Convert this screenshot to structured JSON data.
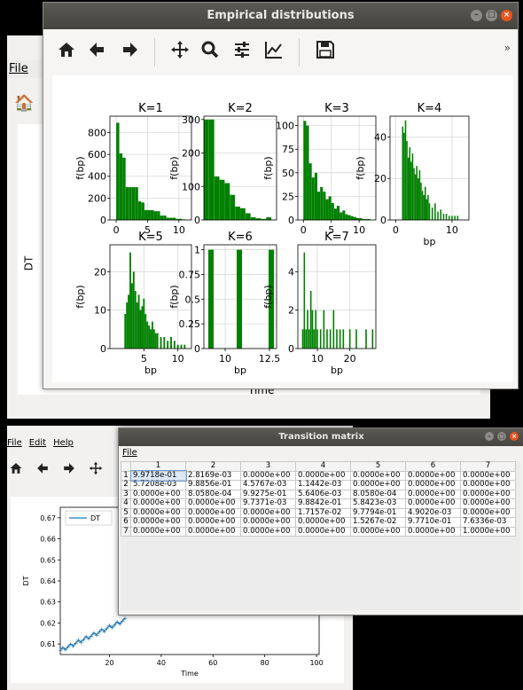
{
  "top_window": {
    "title": "Empirical distributions",
    "toolbar": [
      "home-icon",
      "back-icon",
      "forward-icon",
      "pan-icon",
      "zoom-icon",
      "configure-icon",
      "edit-axes-icon",
      "save-icon"
    ],
    "overflow": "»"
  },
  "bg_window": {
    "menu_file": "File",
    "ylabel": "DT",
    "xlabel": "Time"
  },
  "chart_data": [
    {
      "type": "bar",
      "title": "K=1",
      "ylabel": "f(bp)",
      "xlabel": "",
      "xlim": [
        -1,
        12
      ],
      "ylim": [
        0,
        950
      ],
      "yticks": [
        0,
        200,
        400,
        600,
        800
      ],
      "xticks": [
        0,
        5,
        10
      ],
      "x": [
        0.25,
        0.75,
        1.25,
        1.75,
        2.25,
        2.75,
        3.25,
        3.75,
        4.25,
        4.75,
        5.25,
        5.75,
        6.25,
        6.75,
        7.25,
        7.75,
        8.25,
        8.75,
        9.25,
        9.75,
        10.25,
        10.75
      ],
      "values": [
        890,
        610,
        570,
        300,
        300,
        300,
        300,
        170,
        160,
        90,
        90,
        90,
        80,
        80,
        40,
        40,
        20,
        20,
        20,
        10,
        10,
        5
      ]
    },
    {
      "type": "bar",
      "title": "K=2",
      "ylabel": "f(bp)",
      "xlabel": "",
      "xlim": [
        0,
        14
      ],
      "ylim": [
        0,
        310
      ],
      "yticks": [
        0,
        100,
        200,
        300
      ],
      "xticks": [],
      "x": [
        0.5,
        1.5,
        2.5,
        3.5,
        4.5,
        5.5,
        6.5,
        7.5,
        8.5,
        9.5,
        10.5,
        11.5,
        12.5
      ],
      "values": [
        300,
        300,
        130,
        120,
        110,
        75,
        40,
        35,
        20,
        8,
        5,
        3,
        8
      ]
    },
    {
      "type": "bar",
      "title": "K=3",
      "ylabel": "f(bp)",
      "xlabel": "",
      "xlim": [
        -1,
        13
      ],
      "ylim": [
        0,
        110
      ],
      "yticks": [
        0,
        25,
        50,
        75,
        100
      ],
      "xticks": [
        0,
        5,
        10
      ],
      "x": [
        0.25,
        0.75,
        1.25,
        1.75,
        2.25,
        2.75,
        3.25,
        3.75,
        4.25,
        4.75,
        5.25,
        5.75,
        6.25,
        6.75,
        7.25,
        7.75,
        8.25,
        8.75,
        9.25,
        9.75,
        10.25,
        10.75,
        11.25,
        11.75
      ],
      "values": [
        105,
        100,
        60,
        45,
        50,
        30,
        35,
        30,
        22,
        25,
        18,
        12,
        15,
        8,
        10,
        6,
        5,
        4,
        3,
        2,
        2,
        1,
        1,
        1
      ]
    },
    {
      "type": "bar",
      "title": "K=4",
      "ylabel": "f(bp)",
      "xlabel": "bp",
      "xlim": [
        -1,
        13
      ],
      "ylim": [
        0,
        50
      ],
      "yticks": [
        0,
        20,
        40
      ],
      "xticks": [
        0,
        10
      ],
      "x": [
        1.25,
        1.5,
        1.75,
        2,
        2.25,
        2.5,
        2.75,
        3,
        3.25,
        3.5,
        3.75,
        4,
        4.25,
        4.5,
        4.75,
        5,
        5.25,
        5.5,
        5.75,
        6,
        6.5,
        7,
        7.5,
        8,
        8.5,
        9,
        9.5,
        10,
        10.5,
        11
      ],
      "values": [
        45,
        42,
        48,
        38,
        30,
        35,
        28,
        32,
        25,
        22,
        26,
        20,
        24,
        18,
        14,
        12,
        16,
        10,
        12,
        8,
        6,
        8,
        4,
        5,
        3,
        3,
        2,
        2,
        2,
        2
      ]
    },
    {
      "type": "bar",
      "title": "K=5",
      "ylabel": "f(bp)",
      "xlabel": "bp",
      "xlim": [
        0,
        12
      ],
      "ylim": [
        0,
        27
      ],
      "yticks": [
        0,
        10,
        20
      ],
      "xticks": [
        5,
        10
      ],
      "x": [
        2.25,
        2.5,
        2.75,
        3,
        3.25,
        3.5,
        3.75,
        4,
        4.25,
        4.5,
        4.75,
        5,
        5.25,
        5.5,
        5.75,
        6,
        6.25,
        6.5,
        6.75,
        7,
        7.5,
        8,
        8.5,
        9,
        9.5,
        10,
        10.5,
        11
      ],
      "values": [
        9,
        12,
        14,
        25,
        17,
        20,
        15,
        12,
        14,
        10,
        11,
        13,
        9,
        7,
        6,
        5,
        7,
        5,
        4,
        4,
        3,
        3,
        2,
        3,
        2,
        1,
        1,
        1
      ]
    },
    {
      "type": "bar",
      "title": "K=6",
      "ylabel": "f(bp)",
      "xlabel": "bp",
      "xlim": [
        8.8,
        12.9
      ],
      "ylim": [
        0,
        1.05
      ],
      "yticks": [
        0,
        0.25,
        0.5,
        0.75,
        1.0
      ],
      "xticks": [
        10,
        12.5
      ],
      "x": [
        9.2,
        10.8,
        12.6
      ],
      "values": [
        1,
        1,
        1
      ]
    },
    {
      "type": "bar",
      "title": "K=7",
      "ylabel": "f(bp)",
      "xlabel": "bp",
      "xlim": [
        4,
        28
      ],
      "ylim": [
        0,
        5.4
      ],
      "yticks": [
        0,
        2,
        4
      ],
      "xticks": [
        10,
        20
      ],
      "x": [
        5.5,
        6,
        6.5,
        7,
        7.5,
        8,
        8.5,
        9,
        9.5,
        10,
        11,
        12,
        13,
        14,
        15,
        16,
        17,
        18,
        20,
        22,
        25,
        27
      ],
      "values": [
        1,
        5,
        1,
        2,
        1,
        3,
        2,
        1,
        2,
        1,
        1,
        2,
        1,
        1,
        2,
        1,
        1,
        1,
        1,
        1,
        1,
        1
      ]
    }
  ],
  "bottom_window": {
    "menu": [
      "File",
      "Edit",
      "Help"
    ],
    "legend": "DT",
    "ylabel": "DT",
    "xlabel": "Time",
    "yticks": [
      "0.61",
      "0.62",
      "0.63",
      "0.64",
      "0.65",
      "0.66",
      "0.67"
    ],
    "xticks": [
      "20",
      "40",
      "60",
      "80",
      "100"
    ]
  },
  "transition_window": {
    "title": "Transition matrix",
    "menu_file": "File",
    "columns": [
      "1",
      "2",
      "3",
      "4",
      "5",
      "6",
      "7"
    ],
    "rows": [
      [
        "9.9718e-01",
        "2.8169e-03",
        "0.0000e+00",
        "0.0000e+00",
        "0.0000e+00",
        "0.0000e+00",
        "0.0000e+00"
      ],
      [
        "5.7208e-03",
        "9.8856e-01",
        "4.5767e-03",
        "1.1442e-03",
        "0.0000e+00",
        "0.0000e+00",
        "0.0000e+00"
      ],
      [
        "0.0000e+00",
        "8.0580e-04",
        "9.9275e-01",
        "5.6406e-03",
        "8.0580e-04",
        "0.0000e+00",
        "0.0000e+00"
      ],
      [
        "0.0000e+00",
        "0.0000e+00",
        "9.7371e-03",
        "9.8842e-01",
        "5.8423e-03",
        "0.0000e+00",
        "0.0000e+00"
      ],
      [
        "0.0000e+00",
        "0.0000e+00",
        "0.0000e+00",
        "1.7157e-02",
        "9.7794e-01",
        "4.9020e-03",
        "0.0000e+00"
      ],
      [
        "0.0000e+00",
        "0.0000e+00",
        "0.0000e+00",
        "0.0000e+00",
        "1.5267e-02",
        "9.7710e-01",
        "7.6336e-03"
      ],
      [
        "0.0000e+00",
        "0.0000e+00",
        "0.0000e+00",
        "0.0000e+00",
        "0.0000e+00",
        "0.0000e+00",
        "1.0000e+00"
      ]
    ]
  }
}
